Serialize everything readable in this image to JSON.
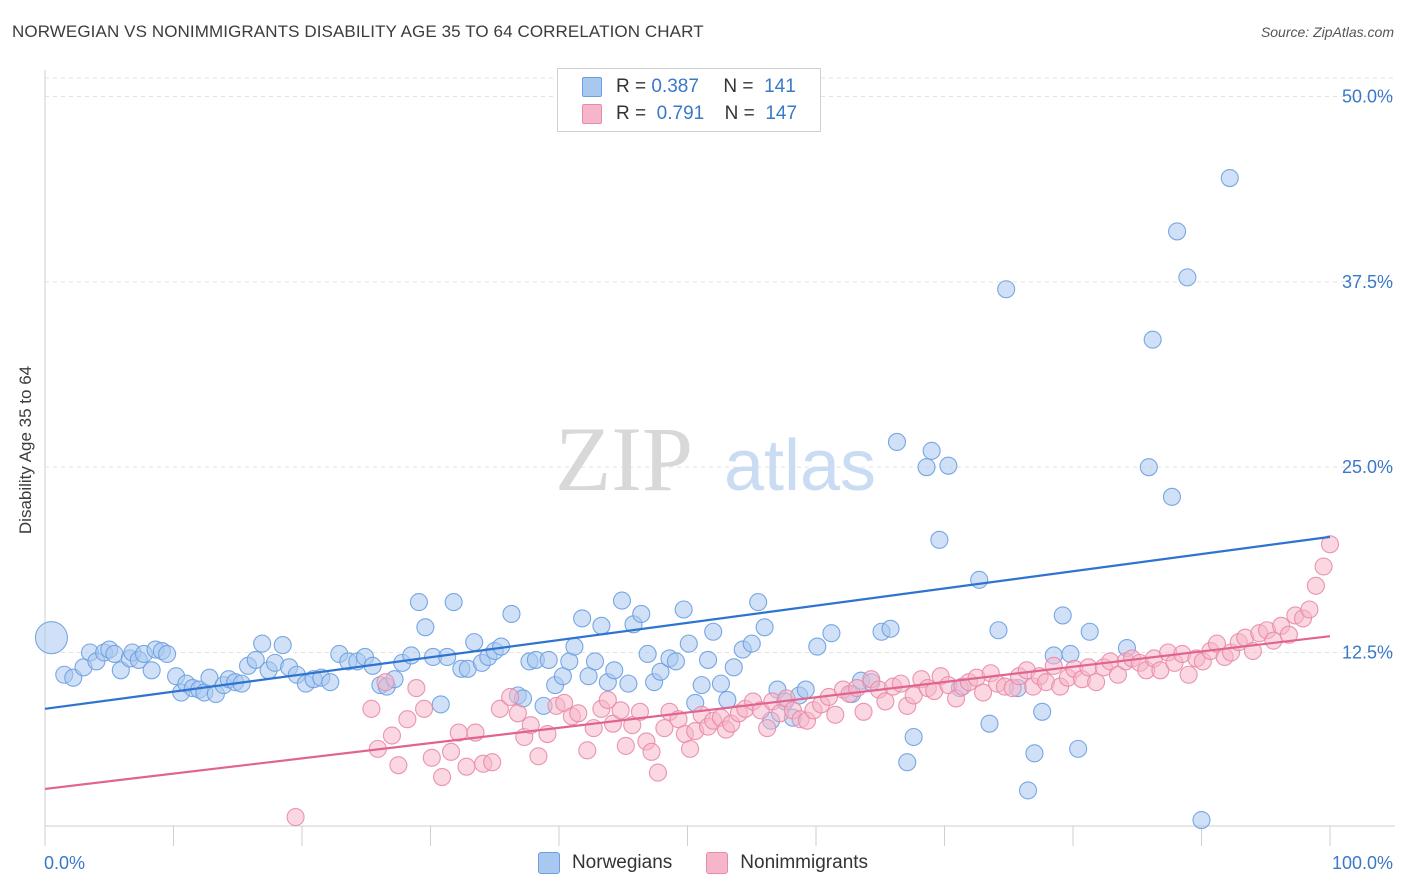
{
  "title": "NORWEGIAN VS NONIMMIGRANTS DISABILITY AGE 35 TO 64 CORRELATION CHART",
  "source": "Source: ZipAtlas.com",
  "watermark": {
    "zip": "ZIP",
    "atlas": "atlas"
  },
  "legend": {
    "r_label": "R =",
    "n_label": "N =",
    "rows": [
      {
        "r": "0.387",
        "n": "141",
        "color": "#a9c8f0"
      },
      {
        "r": "0.791",
        "n": "147",
        "color": "#f5b6c9"
      }
    ]
  },
  "colors": {
    "norwegians_fill": "#a9c8f0",
    "norwegians_stroke": "#6a9fe0",
    "norwegians_line": "#2f73d0",
    "nonimmigrants_fill": "#f5b6c9",
    "nonimmigrants_stroke": "#e88aa8",
    "nonimmigrants_line": "#e0648f",
    "axis_label": "#3a78c8"
  },
  "chart_data": {
    "type": "scatter",
    "title": "NORWEGIAN VS NONIMMIGRANTS DISABILITY AGE 35 TO 64 CORRELATION CHART",
    "xlabel": "",
    "ylabel": "Disability Age 35 to 64",
    "xlim": [
      0,
      100
    ],
    "ylim": [
      0,
      52
    ],
    "x_tick_labels": [
      "0.0%",
      "100.0%"
    ],
    "y_ticks": [
      12.5,
      25.0,
      37.5,
      50.0
    ],
    "y_tick_labels": [
      "12.5%",
      "25.0%",
      "37.5%",
      "50.0%"
    ],
    "grid": "horizontal dashed",
    "legend_position": "top-center",
    "series": [
      {
        "name": "Norwegians",
        "r": 0.387,
        "n": 141,
        "trend": [
          [
            0,
            8.7
          ],
          [
            100,
            20.3
          ]
        ],
        "points": [
          [
            0.5,
            13.5
          ],
          [
            1.5,
            11.0
          ],
          [
            2.2,
            10.8
          ],
          [
            3.0,
            11.5
          ],
          [
            3.5,
            12.5
          ],
          [
            4.0,
            11.9
          ],
          [
            4.6,
            12.5
          ],
          [
            5.0,
            12.7
          ],
          [
            5.4,
            12.4
          ],
          [
            5.9,
            11.3
          ],
          [
            6.6,
            12.1
          ],
          [
            6.8,
            12.5
          ],
          [
            7.3,
            12.0
          ],
          [
            7.7,
            12.4
          ],
          [
            8.3,
            11.3
          ],
          [
            8.6,
            12.7
          ],
          [
            9.1,
            12.6
          ],
          [
            9.5,
            12.4
          ],
          [
            10.2,
            10.9
          ],
          [
            10.6,
            9.8
          ],
          [
            11.0,
            10.4
          ],
          [
            11.5,
            10.1
          ],
          [
            12.0,
            10.0
          ],
          [
            12.4,
            9.8
          ],
          [
            12.8,
            10.8
          ],
          [
            13.3,
            9.7
          ],
          [
            13.9,
            10.3
          ],
          [
            14.3,
            10.7
          ],
          [
            14.8,
            10.5
          ],
          [
            15.3,
            10.4
          ],
          [
            15.8,
            11.6
          ],
          [
            16.4,
            12.0
          ],
          [
            16.9,
            13.1
          ],
          [
            17.4,
            11.3
          ],
          [
            17.9,
            11.8
          ],
          [
            18.5,
            13.0
          ],
          [
            19.0,
            11.5
          ],
          [
            19.6,
            11.0
          ],
          [
            20.3,
            10.4
          ],
          [
            20.9,
            10.7
          ],
          [
            21.5,
            10.8
          ],
          [
            22.2,
            10.5
          ],
          [
            22.9,
            12.4
          ],
          [
            23.6,
            11.9
          ],
          [
            24.3,
            11.9
          ],
          [
            24.9,
            12.2
          ],
          [
            25.5,
            11.6
          ],
          [
            26.1,
            10.3
          ],
          [
            26.6,
            10.2
          ],
          [
            27.2,
            10.7
          ],
          [
            27.8,
            11.8
          ],
          [
            28.5,
            12.3
          ],
          [
            29.1,
            15.9
          ],
          [
            29.6,
            14.2
          ],
          [
            30.2,
            12.2
          ],
          [
            30.8,
            9.0
          ],
          [
            31.3,
            12.2
          ],
          [
            31.8,
            15.9
          ],
          [
            32.4,
            11.4
          ],
          [
            32.9,
            11.4
          ],
          [
            33.4,
            13.2
          ],
          [
            34.0,
            11.8
          ],
          [
            34.5,
            12.2
          ],
          [
            35.0,
            12.6
          ],
          [
            35.5,
            12.9
          ],
          [
            36.3,
            15.1
          ],
          [
            36.8,
            9.6
          ],
          [
            37.2,
            9.4
          ],
          [
            37.7,
            11.9
          ],
          [
            38.2,
            12.0
          ],
          [
            38.8,
            8.9
          ],
          [
            39.2,
            12.0
          ],
          [
            39.7,
            10.3
          ],
          [
            40.3,
            10.9
          ],
          [
            40.8,
            11.9
          ],
          [
            41.2,
            12.9
          ],
          [
            41.8,
            14.8
          ],
          [
            42.3,
            10.9
          ],
          [
            42.8,
            11.9
          ],
          [
            43.3,
            14.3
          ],
          [
            43.8,
            10.5
          ],
          [
            44.3,
            11.3
          ],
          [
            44.9,
            16.0
          ],
          [
            45.4,
            10.4
          ],
          [
            45.8,
            14.4
          ],
          [
            46.4,
            15.1
          ],
          [
            46.9,
            12.4
          ],
          [
            47.4,
            10.5
          ],
          [
            47.9,
            11.2
          ],
          [
            48.6,
            12.1
          ],
          [
            49.1,
            11.9
          ],
          [
            49.7,
            15.4
          ],
          [
            50.1,
            13.1
          ],
          [
            50.6,
            9.1
          ],
          [
            51.1,
            10.3
          ],
          [
            51.6,
            12.0
          ],
          [
            52.0,
            13.9
          ],
          [
            52.6,
            10.4
          ],
          [
            53.1,
            9.3
          ],
          [
            53.6,
            11.5
          ],
          [
            54.3,
            12.7
          ],
          [
            55.0,
            13.1
          ],
          [
            55.5,
            15.9
          ],
          [
            56.0,
            14.2
          ],
          [
            56.5,
            7.9
          ],
          [
            57.0,
            10.0
          ],
          [
            57.6,
            9.2
          ],
          [
            58.2,
            8.1
          ],
          [
            58.7,
            9.6
          ],
          [
            59.2,
            10.0
          ],
          [
            60.1,
            12.9
          ],
          [
            61.2,
            13.8
          ],
          [
            62.8,
            9.7
          ],
          [
            63.5,
            10.6
          ],
          [
            64.3,
            10.5
          ],
          [
            65.1,
            13.9
          ],
          [
            65.8,
            14.1
          ],
          [
            66.3,
            26.7
          ],
          [
            67.1,
            5.1
          ],
          [
            67.6,
            6.8
          ],
          [
            68.6,
            25.0
          ],
          [
            69.0,
            26.1
          ],
          [
            69.6,
            20.1
          ],
          [
            70.3,
            25.1
          ],
          [
            71.2,
            10.1
          ],
          [
            72.7,
            17.4
          ],
          [
            73.5,
            7.7
          ],
          [
            74.2,
            14.0
          ],
          [
            74.8,
            37.0
          ],
          [
            75.7,
            10.1
          ],
          [
            76.5,
            3.2
          ],
          [
            77.0,
            5.7
          ],
          [
            77.6,
            8.5
          ],
          [
            78.5,
            12.3
          ],
          [
            79.2,
            15.0
          ],
          [
            79.8,
            12.4
          ],
          [
            80.4,
            6.0
          ],
          [
            81.3,
            13.9
          ],
          [
            84.2,
            12.8
          ],
          [
            85.9,
            25.0
          ],
          [
            86.2,
            33.6
          ],
          [
            87.7,
            23.0
          ],
          [
            88.1,
            40.9
          ],
          [
            88.9,
            37.8
          ],
          [
            90.0,
            1.2
          ],
          [
            92.2,
            44.5
          ]
        ]
      },
      {
        "name": "Nonimmigrants",
        "r": 0.791,
        "n": 147,
        "trend": [
          [
            0,
            3.3
          ],
          [
            100,
            13.6
          ]
        ],
        "points": [
          [
            19.5,
            1.4
          ],
          [
            25.4,
            8.7
          ],
          [
            25.9,
            6.0
          ],
          [
            26.5,
            10.5
          ],
          [
            27.0,
            6.9
          ],
          [
            27.5,
            4.9
          ],
          [
            28.2,
            8.0
          ],
          [
            28.9,
            10.1
          ],
          [
            29.5,
            8.7
          ],
          [
            30.1,
            5.4
          ],
          [
            30.9,
            4.1
          ],
          [
            31.6,
            5.8
          ],
          [
            32.2,
            7.1
          ],
          [
            32.8,
            4.8
          ],
          [
            33.5,
            7.1
          ],
          [
            34.1,
            5.0
          ],
          [
            34.8,
            5.1
          ],
          [
            35.4,
            8.7
          ],
          [
            36.2,
            9.5
          ],
          [
            36.8,
            8.4
          ],
          [
            37.3,
            6.8
          ],
          [
            37.8,
            7.6
          ],
          [
            38.4,
            5.5
          ],
          [
            39.1,
            7.0
          ],
          [
            39.8,
            8.9
          ],
          [
            40.4,
            9.1
          ],
          [
            41.0,
            8.2
          ],
          [
            41.5,
            8.4
          ],
          [
            42.2,
            5.9
          ],
          [
            42.7,
            7.4
          ],
          [
            43.3,
            8.7
          ],
          [
            43.8,
            9.3
          ],
          [
            44.2,
            7.7
          ],
          [
            44.8,
            8.6
          ],
          [
            45.2,
            6.2
          ],
          [
            45.7,
            7.6
          ],
          [
            46.3,
            8.5
          ],
          [
            46.8,
            6.5
          ],
          [
            47.2,
            5.8
          ],
          [
            47.7,
            4.4
          ],
          [
            48.2,
            7.4
          ],
          [
            48.6,
            8.5
          ],
          [
            49.3,
            8.0
          ],
          [
            49.8,
            7.0
          ],
          [
            50.2,
            6.0
          ],
          [
            50.6,
            7.2
          ],
          [
            51.1,
            8.3
          ],
          [
            51.6,
            7.5
          ],
          [
            52.0,
            7.9
          ],
          [
            52.6,
            8.1
          ],
          [
            53.0,
            7.3
          ],
          [
            53.4,
            7.7
          ],
          [
            54.0,
            8.4
          ],
          [
            54.5,
            8.7
          ],
          [
            55.1,
            9.2
          ],
          [
            55.7,
            8.6
          ],
          [
            56.2,
            7.4
          ],
          [
            56.6,
            9.2
          ],
          [
            57.2,
            8.4
          ],
          [
            57.7,
            9.4
          ],
          [
            58.2,
            8.6
          ],
          [
            58.8,
            8.0
          ],
          [
            59.3,
            7.9
          ],
          [
            59.8,
            8.6
          ],
          [
            60.4,
            9.0
          ],
          [
            61.0,
            9.5
          ],
          [
            61.5,
            8.3
          ],
          [
            62.1,
            10.0
          ],
          [
            62.6,
            9.7
          ],
          [
            63.2,
            10.1
          ],
          [
            63.7,
            8.5
          ],
          [
            64.3,
            10.7
          ],
          [
            64.9,
            10.0
          ],
          [
            65.4,
            9.2
          ],
          [
            66.0,
            10.2
          ],
          [
            66.6,
            10.4
          ],
          [
            67.1,
            8.9
          ],
          [
            67.6,
            9.6
          ],
          [
            68.2,
            10.7
          ],
          [
            68.7,
            10.1
          ],
          [
            69.2,
            9.9
          ],
          [
            69.7,
            10.9
          ],
          [
            70.3,
            10.3
          ],
          [
            70.9,
            9.4
          ],
          [
            71.4,
            10.2
          ],
          [
            71.9,
            10.5
          ],
          [
            72.5,
            10.8
          ],
          [
            73.0,
            9.8
          ],
          [
            73.6,
            11.1
          ],
          [
            74.1,
            10.4
          ],
          [
            74.7,
            10.2
          ],
          [
            75.3,
            10.1
          ],
          [
            75.8,
            10.9
          ],
          [
            76.4,
            11.3
          ],
          [
            76.9,
            10.2
          ],
          [
            77.4,
            10.9
          ],
          [
            77.9,
            10.5
          ],
          [
            78.5,
            11.6
          ],
          [
            79.0,
            10.2
          ],
          [
            79.6,
            10.8
          ],
          [
            80.1,
            11.4
          ],
          [
            80.7,
            10.7
          ],
          [
            81.2,
            11.5
          ],
          [
            81.8,
            10.5
          ],
          [
            82.4,
            11.5
          ],
          [
            82.9,
            11.9
          ],
          [
            83.5,
            11.0
          ],
          [
            84.1,
            11.9
          ],
          [
            84.6,
            12.1
          ],
          [
            85.2,
            11.8
          ],
          [
            85.7,
            11.3
          ],
          [
            86.3,
            12.1
          ],
          [
            86.8,
            11.3
          ],
          [
            87.4,
            12.5
          ],
          [
            87.9,
            11.8
          ],
          [
            88.5,
            12.4
          ],
          [
            89.0,
            11.0
          ],
          [
            89.6,
            12.1
          ],
          [
            90.1,
            11.9
          ],
          [
            90.7,
            12.6
          ],
          [
            91.2,
            13.1
          ],
          [
            91.8,
            12.2
          ],
          [
            92.3,
            12.5
          ],
          [
            92.9,
            13.2
          ],
          [
            93.4,
            13.5
          ],
          [
            94.0,
            12.6
          ],
          [
            94.5,
            13.8
          ],
          [
            95.1,
            14.0
          ],
          [
            95.6,
            13.3
          ],
          [
            96.2,
            14.3
          ],
          [
            96.8,
            13.7
          ],
          [
            97.3,
            15.0
          ],
          [
            97.9,
            14.8
          ],
          [
            98.4,
            15.4
          ],
          [
            98.9,
            17.0
          ],
          [
            99.5,
            18.3
          ],
          [
            100.0,
            19.8
          ]
        ]
      }
    ]
  },
  "bottom_legend": [
    "Norwegians",
    "Nonimmigrants"
  ]
}
